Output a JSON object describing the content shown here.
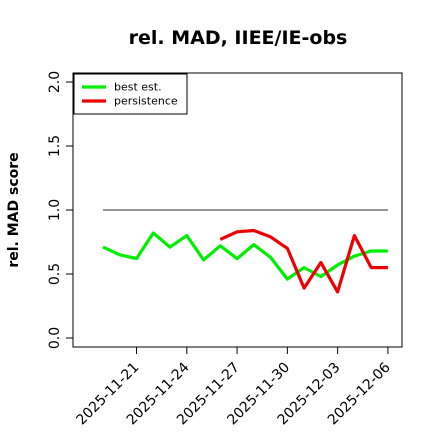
{
  "chart_data": {
    "type": "line",
    "title": "rel. MAD, IIEE/IE-obs",
    "xlabel": "",
    "ylabel": "rel. MAD score",
    "ylim": [
      0.0,
      2.0
    ],
    "yticks": [
      "0.0",
      "0.5",
      "1.0",
      "1.5",
      "2.0"
    ],
    "xticks": [
      "2025-11-21",
      "2025-11-24",
      "2025-11-27",
      "2025-11-30",
      "2025-12-03",
      "2025-12-06"
    ],
    "x_start": "2025-11-19",
    "x_end": "2025-12-06",
    "reference_line": 1.0,
    "legend_position": "top-left",
    "series": [
      {
        "name": "best est.",
        "color": "#00ee00",
        "x": [
          "2025-11-19",
          "2025-11-20",
          "2025-11-21",
          "2025-11-22",
          "2025-11-23",
          "2025-11-24",
          "2025-11-25",
          "2025-11-26",
          "2025-11-27",
          "2025-11-28",
          "2025-11-29",
          "2025-11-30",
          "2025-12-01",
          "2025-12-02",
          "2025-12-03",
          "2025-12-04",
          "2025-12-05",
          "2025-12-06"
        ],
        "values": [
          0.71,
          0.65,
          0.62,
          0.82,
          0.71,
          0.8,
          0.61,
          0.72,
          0.62,
          0.73,
          0.63,
          0.46,
          0.55,
          0.48,
          0.57,
          0.64,
          0.68,
          0.68
        ]
      },
      {
        "name": "persistence",
        "color": "#ee0000",
        "x": [
          "2025-11-26",
          "2025-11-27",
          "2025-11-28",
          "2025-11-29",
          "2025-11-30",
          "2025-12-01",
          "2025-12-02",
          "2025-12-03",
          "2025-12-04",
          "2025-12-05",
          "2025-12-06"
        ],
        "values": [
          0.77,
          0.83,
          0.84,
          0.79,
          0.7,
          0.39,
          0.59,
          0.36,
          0.8,
          0.55,
          0.55
        ]
      }
    ]
  }
}
